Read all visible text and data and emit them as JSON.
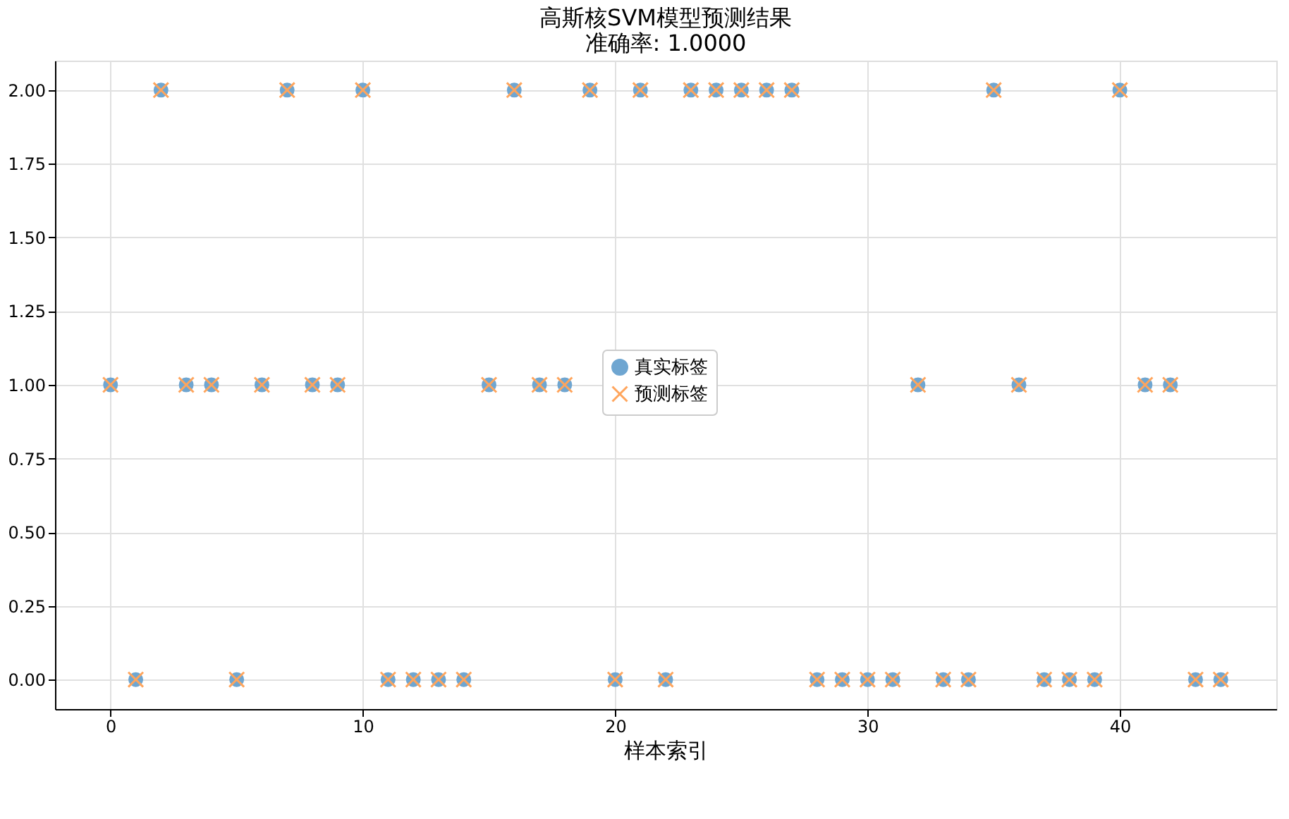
{
  "chart_data": {
    "type": "scatter",
    "title": "高斯核SVM模型预测结果",
    "subtitle": "准确率: 1.0000",
    "xlabel": "样本索引",
    "x": [
      0,
      1,
      2,
      3,
      4,
      5,
      6,
      7,
      8,
      9,
      10,
      11,
      12,
      13,
      14,
      15,
      16,
      17,
      18,
      19,
      20,
      21,
      22,
      23,
      24,
      25,
      26,
      27,
      28,
      29,
      30,
      31,
      32,
      33,
      34,
      35,
      36,
      37,
      38,
      39,
      40,
      41,
      42,
      43,
      44
    ],
    "series": [
      {
        "name": "真实标签",
        "color": "#6fa6d1",
        "marker": "circle",
        "values": [
          1,
          0,
          2,
          1,
          1,
          0,
          1,
          2,
          1,
          1,
          2,
          0,
          0,
          0,
          0,
          1,
          2,
          1,
          1,
          2,
          0,
          2,
          0,
          2,
          2,
          2,
          2,
          2,
          0,
          0,
          0,
          0,
          1,
          0,
          0,
          2,
          1,
          0,
          0,
          0,
          2,
          1,
          1,
          0,
          0
        ]
      },
      {
        "name": "预测标签",
        "color": "#ffa55c",
        "marker": "cross",
        "values": [
          1,
          0,
          2,
          1,
          1,
          0,
          1,
          2,
          1,
          1,
          2,
          0,
          0,
          0,
          0,
          1,
          2,
          1,
          1,
          2,
          0,
          2,
          0,
          2,
          2,
          2,
          2,
          2,
          0,
          0,
          0,
          0,
          1,
          0,
          0,
          2,
          1,
          0,
          0,
          0,
          2,
          1,
          1,
          0,
          0
        ]
      }
    ],
    "xlim": [
      -2.2,
      46.2
    ],
    "xticks": [
      0,
      10,
      20,
      30,
      40
    ],
    "ylim": [
      -0.1,
      2.1
    ],
    "yticks": [
      {
        "value": 0,
        "label": "0.00"
      },
      {
        "value": 0.25,
        "label": "0.25"
      },
      {
        "value": 0.5,
        "label": "0.50"
      },
      {
        "value": 0.75,
        "label": "0.75"
      },
      {
        "value": 1,
        "label": "1.00"
      },
      {
        "value": 1.25,
        "label": "1.25"
      },
      {
        "value": 1.5,
        "label": "1.50"
      },
      {
        "value": 1.75,
        "label": "1.75"
      },
      {
        "value": 2,
        "label": "2.00"
      }
    ],
    "grid": true,
    "legend": "center"
  }
}
